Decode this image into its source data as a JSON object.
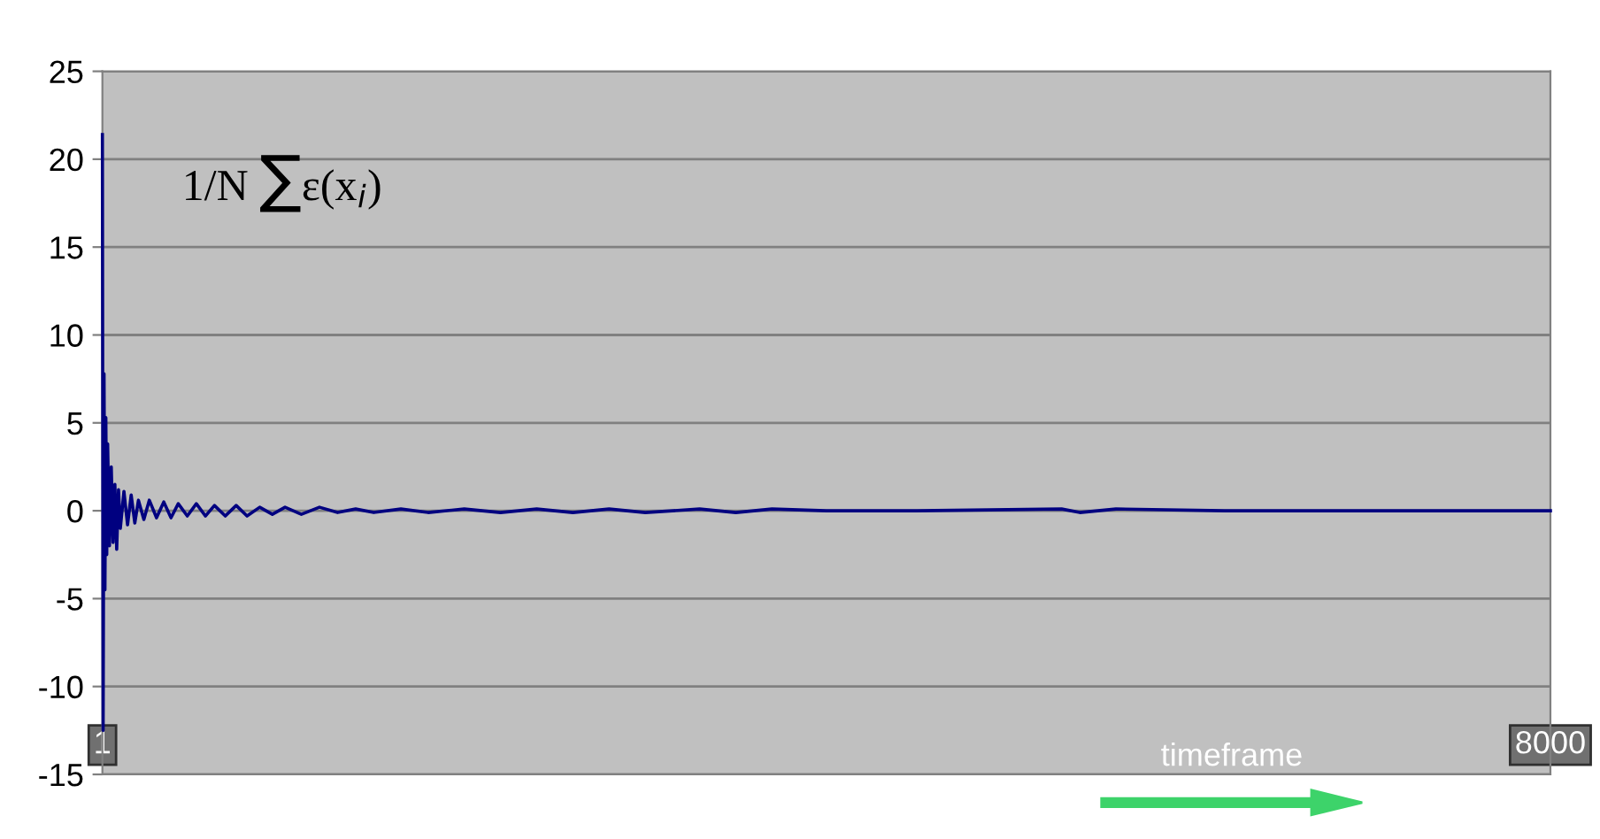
{
  "chart_data": {
    "type": "line",
    "grid": "y",
    "marker": "none",
    "line_style": "solid",
    "x": [
      1,
      5,
      10,
      15,
      20,
      25,
      30,
      40,
      50,
      60,
      70,
      80,
      90,
      100,
      120,
      140,
      160,
      180,
      200,
      230,
      260,
      300,
      340,
      380,
      420,
      470,
      520,
      570,
      620,
      680,
      740,
      800,
      870,
      940,
      1010,
      1100,
      1200,
      1300,
      1400,
      1500,
      1650,
      1800,
      2000,
      2200,
      2400,
      2600,
      2800,
      3000,
      3300,
      3500,
      3700,
      4000,
      4500,
      5300,
      5400,
      5600,
      6200,
      8000
    ],
    "series": [
      {
        "color": "#000080",
        "values": [
          21.4,
          -12.5,
          7.8,
          -4.5,
          5.3,
          -2.5,
          3.8,
          -2.0,
          2.5,
          -1.8,
          1.5,
          -2.2,
          1.2,
          -1.0,
          1.1,
          -0.8,
          0.9,
          -0.7,
          0.6,
          -0.5,
          0.6,
          -0.4,
          0.5,
          -0.4,
          0.4,
          -0.3,
          0.4,
          -0.3,
          0.3,
          -0.3,
          0.3,
          -0.3,
          0.2,
          -0.2,
          0.2,
          -0.2,
          0.2,
          -0.1,
          0.1,
          -0.1,
          0.1,
          -0.1,
          0.1,
          -0.1,
          0.1,
          -0.1,
          0.1,
          -0.1,
          0.1,
          -0.1,
          0.1,
          0,
          0,
          0.1,
          -0.1,
          0.1,
          0,
          0
        ]
      }
    ],
    "xlim": [
      1,
      8000
    ],
    "xticks": [
      1,
      8000
    ],
    "ylim": [
      -15,
      25
    ],
    "yticks": [
      -15,
      -10,
      -5,
      0,
      5,
      10,
      15,
      20,
      25
    ],
    "xlabel": "timeframe",
    "annotations": [
      "1/N ∑ε(x$_{i}$)"
    ]
  }
}
